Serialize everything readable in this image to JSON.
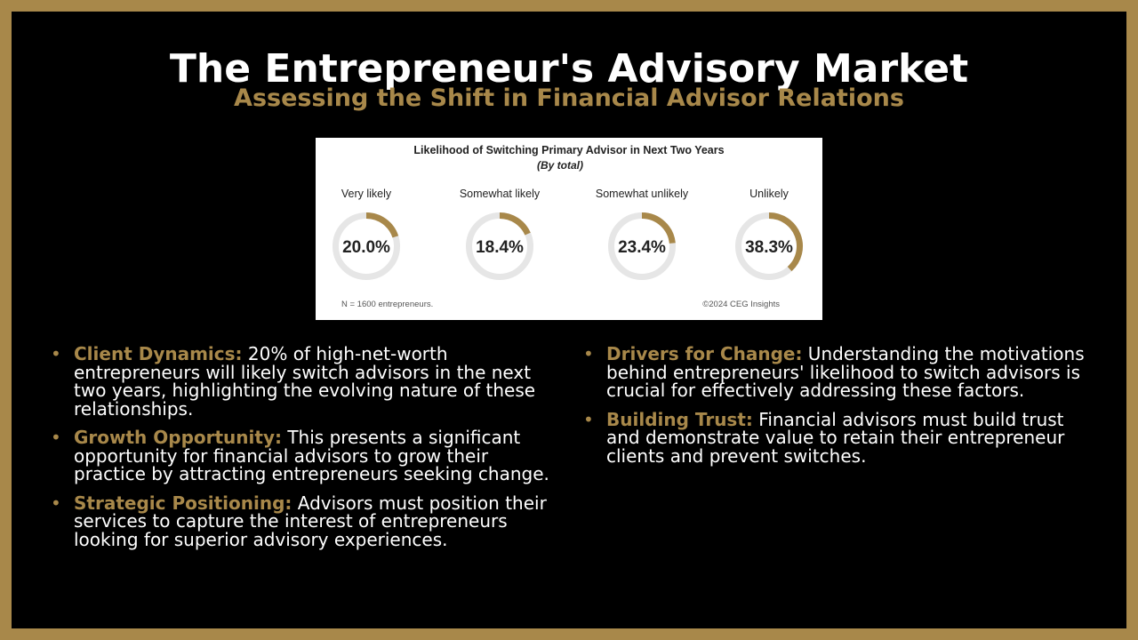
{
  "slide": {
    "title": "The Entrepreneur's Advisory Market",
    "subtitle": "Assessing the Shift in Financial Advisor Relations"
  },
  "colors": {
    "frame": "#a8884a",
    "background": "#000000",
    "accent": "#a8884a",
    "ring_track": "#e6e6e6",
    "ring_fill": "#a8884a"
  },
  "chart_data": {
    "type": "pie",
    "variant": "donut-gauges",
    "title": "Likelihood of Switching Primary Advisor in Next Two Years",
    "subtitle": "(By total)",
    "categories": [
      "Very likely",
      "Somewhat likely",
      "Somewhat unlikely",
      "Unlikely"
    ],
    "values": [
      20.0,
      18.4,
      23.4,
      38.3
    ],
    "value_labels": [
      "20.0%",
      "18.4%",
      "23.4%",
      "38.3%"
    ],
    "unit": "%",
    "footnote": "N = 1600 entrepreneurs.",
    "source": "©2024 CEG Insights"
  },
  "bullets": {
    "left": [
      {
        "heading": "Client Dynamics:",
        "text": " 20% of high-net-worth entrepreneurs will likely switch advisors in the next two years, highlighting the evolving nature of these relationships."
      },
      {
        "heading": "Growth Opportunity:",
        "text": " This presents a significant opportunity for financial advisors to grow their practice by attracting entrepreneurs seeking change."
      },
      {
        "heading": "Strategic Positioning:",
        "text": " Advisors must position their services to capture the interest of entrepreneurs looking for superior advisory experiences."
      }
    ],
    "right": [
      {
        "heading": "Drivers for Change:",
        "text": " Understanding the motivations behind entrepreneurs' likelihood to switch advisors is crucial for effectively addressing these factors."
      },
      {
        "heading": "Building Trust:",
        "text": " Financial advisors must build trust and demonstrate value to retain their entrepreneur clients and prevent switches."
      }
    ]
  }
}
